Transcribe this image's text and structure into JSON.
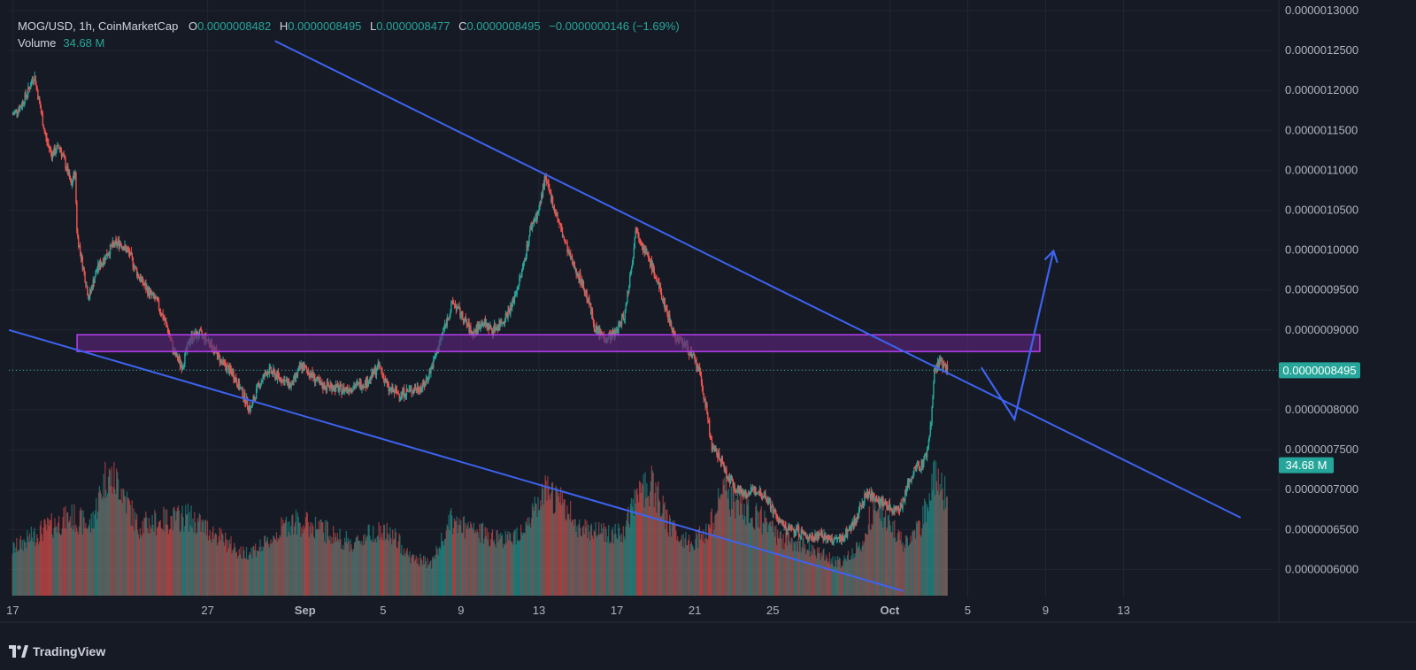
{
  "header": {
    "symbol": "MOG/USD, 1h, CoinMarketCap",
    "open_label": "O",
    "open": "0.0000008482",
    "high_label": "H",
    "high": "0.0000008495",
    "low_label": "L",
    "low": "0.0000008477",
    "close_label": "C",
    "close": "0.0000008495",
    "change": "−0.0000000146 (−1.69%)",
    "volume_label": "Volume",
    "volume": "34.68 M"
  },
  "colors": {
    "background": "#161a25",
    "grid": "#232632",
    "up": "#26a69a",
    "down": "#ef5350",
    "trendline": "#3d63f0",
    "zone_fill": "#5b2378",
    "zone_border": "#b93ef2",
    "price_tag": "#26a69a"
  },
  "price_tag": "0.0000008495",
  "volume_tag": "34.68 M",
  "footer": {
    "brand": "TradingView",
    "brand_icon": "tradingview-logo-icon"
  },
  "chart_data": {
    "type": "candlestick",
    "title": "MOG/USD, 1h, CoinMarketCap",
    "y_axis": {
      "ticks": [
        "0.0000013000",
        "0.0000012500",
        "0.0000012000",
        "0.0000011500",
        "0.0000011000",
        "0.0000010500",
        "0.0000010000",
        "0.0000009500",
        "0.0000009000",
        "0.0000008500",
        "0.0000008000",
        "0.0000007500",
        "0.0000007000",
        "0.0000006500",
        "0.0000006000"
      ],
      "tick_values": [
        1.3,
        1.25,
        1.2,
        1.15,
        1.1,
        1.05,
        1.0,
        0.95,
        0.9,
        0.85,
        0.8,
        0.75,
        0.7,
        0.65,
        0.6
      ],
      "unit_scale": 1e-06,
      "range": [
        0.565,
        1.3
      ]
    },
    "x_axis": {
      "ticks": [
        "17",
        "27",
        "Sep",
        "5",
        "9",
        "13",
        "17",
        "21",
        "25",
        "Oct",
        "5",
        "9",
        "13"
      ],
      "tick_days": [
        -14,
        -4,
        1,
        5,
        9,
        13,
        17,
        21,
        25,
        31,
        35,
        39,
        43
      ],
      "day_range": [
        -14.2,
        50.6
      ],
      "bold_ticks": [
        "Sep",
        "Oct"
      ]
    },
    "price_path": [
      [
        -14,
        1.17
      ],
      [
        -13.6,
        1.18
      ],
      [
        -13.2,
        1.2
      ],
      [
        -12.9,
        1.22
      ],
      [
        -12.6,
        1.18
      ],
      [
        -12.3,
        1.14
      ],
      [
        -12,
        1.12
      ],
      [
        -11.6,
        1.13
      ],
      [
        -11.2,
        1.1
      ],
      [
        -11,
        1.08
      ],
      [
        -10.8,
        1.1
      ],
      [
        -10.7,
        1.02
      ],
      [
        -10.4,
        0.98
      ],
      [
        -10.1,
        0.94
      ],
      [
        -9.7,
        0.975
      ],
      [
        -9.3,
        0.99
      ],
      [
        -8.9,
        1.005
      ],
      [
        -8.5,
        1.01
      ],
      [
        -8,
        0.995
      ],
      [
        -7.6,
        0.97
      ],
      [
        -7.1,
        0.95
      ],
      [
        -6.6,
        0.935
      ],
      [
        -6.1,
        0.905
      ],
      [
        -5.7,
        0.87
      ],
      [
        -5.3,
        0.855
      ],
      [
        -4.9,
        0.89
      ],
      [
        -4.4,
        0.895
      ],
      [
        -3.9,
        0.885
      ],
      [
        -3.3,
        0.86
      ],
      [
        -2.7,
        0.845
      ],
      [
        -2.2,
        0.82
      ],
      [
        -1.8,
        0.8
      ],
      [
        -1.4,
        0.83
      ],
      [
        -0.9,
        0.85
      ],
      [
        -0.3,
        0.84
      ],
      [
        0.3,
        0.83
      ],
      [
        0.8,
        0.855
      ],
      [
        1.3,
        0.845
      ],
      [
        1.8,
        0.83
      ],
      [
        2.3,
        0.83
      ],
      [
        2.9,
        0.825
      ],
      [
        3.6,
        0.83
      ],
      [
        4.2,
        0.835
      ],
      [
        4.8,
        0.855
      ],
      [
        5.3,
        0.825
      ],
      [
        5.9,
        0.82
      ],
      [
        6.5,
        0.825
      ],
      [
        7.1,
        0.83
      ],
      [
        7.6,
        0.86
      ],
      [
        8.1,
        0.9
      ],
      [
        8.6,
        0.935
      ],
      [
        9.1,
        0.915
      ],
      [
        9.6,
        0.895
      ],
      [
        10.1,
        0.91
      ],
      [
        10.6,
        0.9
      ],
      [
        11.1,
        0.91
      ],
      [
        11.6,
        0.93
      ],
      [
        12.1,
        0.97
      ],
      [
        12.6,
        1.03
      ],
      [
        13.0,
        1.05
      ],
      [
        13.3,
        1.09
      ],
      [
        13.7,
        1.06
      ],
      [
        14.2,
        1.02
      ],
      [
        14.6,
        0.99
      ],
      [
        15.1,
        0.965
      ],
      [
        15.5,
        0.94
      ],
      [
        15.9,
        0.9
      ],
      [
        16.4,
        0.89
      ],
      [
        16.9,
        0.895
      ],
      [
        17.4,
        0.92
      ],
      [
        17.8,
        0.99
      ],
      [
        18.0,
        1.03
      ],
      [
        18.4,
        1.0
      ],
      [
        18.8,
        0.98
      ],
      [
        19.2,
        0.95
      ],
      [
        19.6,
        0.92
      ],
      [
        20.0,
        0.89
      ],
      [
        20.4,
        0.885
      ],
      [
        20.8,
        0.87
      ],
      [
        21.2,
        0.85
      ],
      [
        21.6,
        0.8
      ],
      [
        21.9,
        0.75
      ],
      [
        22.3,
        0.74
      ],
      [
        22.7,
        0.715
      ],
      [
        23.2,
        0.7
      ],
      [
        23.7,
        0.695
      ],
      [
        24.2,
        0.7
      ],
      [
        24.7,
        0.69
      ],
      [
        25.2,
        0.665
      ],
      [
        25.7,
        0.65
      ],
      [
        26.2,
        0.65
      ],
      [
        26.8,
        0.64
      ],
      [
        27.4,
        0.645
      ],
      [
        28.0,
        0.635
      ],
      [
        28.6,
        0.64
      ],
      [
        29.2,
        0.66
      ],
      [
        29.8,
        0.695
      ],
      [
        30.3,
        0.69
      ],
      [
        30.8,
        0.68
      ],
      [
        31.2,
        0.675
      ],
      [
        31.6,
        0.68
      ],
      [
        32.0,
        0.71
      ],
      [
        32.3,
        0.725
      ],
      [
        32.6,
        0.73
      ],
      [
        32.9,
        0.745
      ],
      [
        33.1,
        0.78
      ],
      [
        33.3,
        0.85
      ],
      [
        33.6,
        0.86
      ],
      [
        34.0,
        0.849
      ]
    ],
    "volume_envelope_millions": [
      [
        -14,
        20
      ],
      [
        -12.5,
        28
      ],
      [
        -11,
        34
      ],
      [
        -10,
        30
      ],
      [
        -9.2,
        52
      ],
      [
        -8.5,
        48
      ],
      [
        -7.6,
        30
      ],
      [
        -6.5,
        32
      ],
      [
        -5,
        34
      ],
      [
        -3.5,
        26
      ],
      [
        -2.2,
        18
      ],
      [
        -1,
        22
      ],
      [
        0.2,
        32
      ],
      [
        1.5,
        30
      ],
      [
        2.5,
        26
      ],
      [
        3.5,
        22
      ],
      [
        4.5,
        28
      ],
      [
        5.5,
        26
      ],
      [
        6.5,
        16
      ],
      [
        7.5,
        14
      ],
      [
        8.5,
        32
      ],
      [
        9.5,
        28
      ],
      [
        10.5,
        26
      ],
      [
        11.5,
        24
      ],
      [
        12.5,
        32
      ],
      [
        13.3,
        44
      ],
      [
        14,
        42
      ],
      [
        15,
        30
      ],
      [
        16.2,
        28
      ],
      [
        17.3,
        26
      ],
      [
        18.2,
        46
      ],
      [
        18.8,
        48
      ],
      [
        19.7,
        30
      ],
      [
        20.8,
        22
      ],
      [
        21.8,
        30
      ],
      [
        22.4,
        44
      ],
      [
        23.2,
        40
      ],
      [
        24.5,
        32
      ],
      [
        25.5,
        24
      ],
      [
        26.5,
        22
      ],
      [
        27.5,
        18
      ],
      [
        28.5,
        14
      ],
      [
        29.5,
        22
      ],
      [
        30.2,
        38
      ],
      [
        31,
        30
      ],
      [
        31.8,
        22
      ],
      [
        32.6,
        30
      ],
      [
        33.3,
        52
      ],
      [
        33.8,
        44
      ]
    ],
    "volume_range_millions": [
      0,
      60
    ],
    "trendlines": [
      {
        "name": "upper-trendline",
        "from": [
          -0.55,
          1.262
        ],
        "to": [
          49,
          0.665
        ]
      },
      {
        "name": "lower-trendline",
        "from": [
          -14.2,
          0.9
        ],
        "to": [
          31.7,
          0.573
        ]
      },
      {
        "name": "projection-arrow",
        "points": [
          [
            35.7,
            0.853
          ],
          [
            37.4,
            0.788
          ],
          [
            39.4,
            0.999
          ]
        ]
      }
    ],
    "zone": {
      "y_top": 0.894,
      "y_bottom": 0.873,
      "day_start": -10.7,
      "day_end": 38.7
    },
    "last_price": 0.8495
  }
}
